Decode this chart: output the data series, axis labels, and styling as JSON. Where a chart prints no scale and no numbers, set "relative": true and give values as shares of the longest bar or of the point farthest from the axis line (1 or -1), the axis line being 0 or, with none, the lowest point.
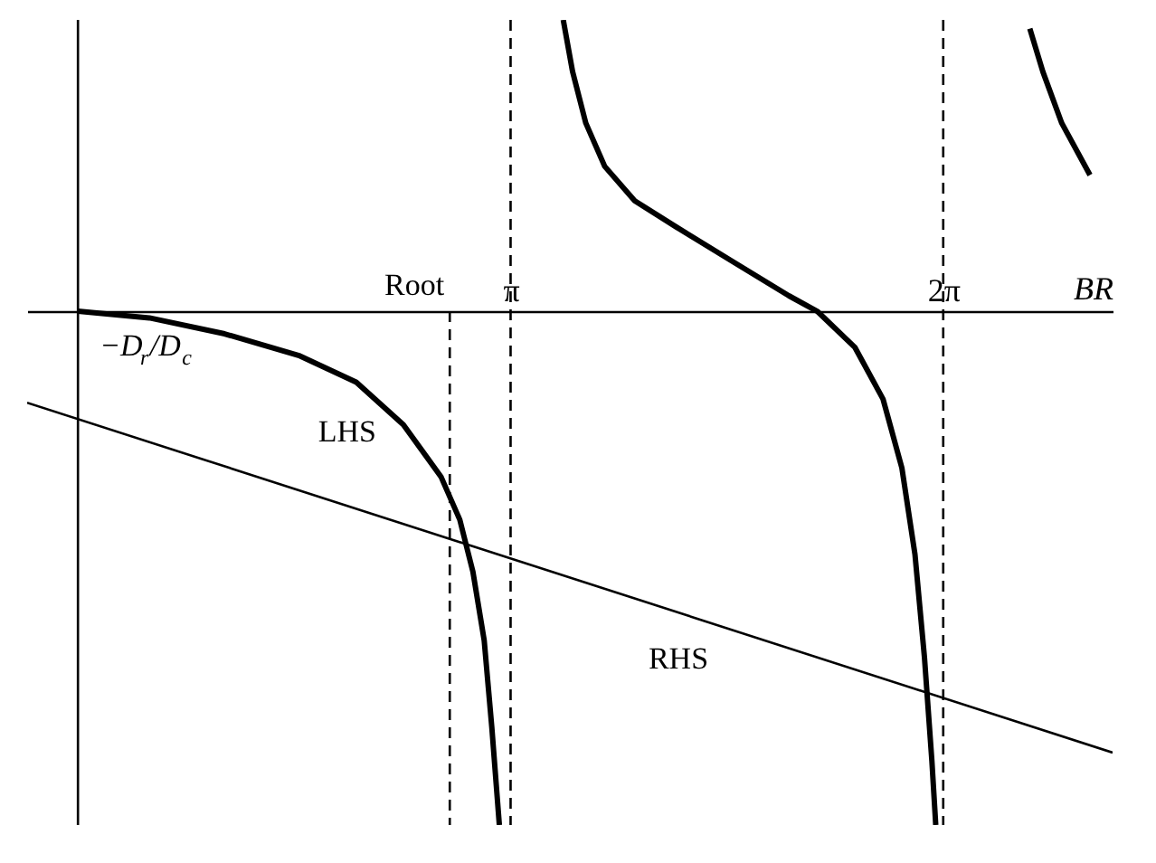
{
  "chart_data": {
    "type": "line",
    "relative": true,
    "xlabel": "BR",
    "xlim": [
      -0.369,
      7.513
    ],
    "xticks": [
      {
        "value": 3.1416,
        "label": "π"
      },
      {
        "value": 6.2832,
        "label": "2π"
      }
    ],
    "series": [
      {
        "name": "LHS",
        "color": "#000000",
        "x": [
          0,
          0.519,
          1.065,
          1.612,
          2.021,
          2.363,
          2.636,
          2.773,
          2.868,
          2.95,
          3.005,
          3.06,
          null,
          3.524,
          3.592,
          3.688,
          3.825,
          4.043,
          4.344,
          4.753,
          5.163,
          5.368,
          5.641,
          5.846,
          5.983,
          6.078,
          6.147,
          6.201,
          6.229,
          null,
          6.912,
          7.007,
          7.144,
          7.349
        ],
        "values": [
          0,
          -0.013,
          -0.044,
          -0.087,
          -0.138,
          -0.221,
          -0.322,
          -0.406,
          -0.507,
          -0.641,
          -0.809,
          -1.0,
          null,
          0.567,
          0.466,
          0.366,
          0.282,
          0.215,
          0.164,
          0.097,
          0.03,
          0,
          -0.07,
          -0.171,
          -0.305,
          -0.473,
          -0.674,
          -0.876,
          -1.0,
          null,
          0.55,
          0.466,
          0.366,
          0.265
        ]
      },
      {
        "name": "RHS",
        "color": "#000000",
        "x": [
          -0.369,
          7.513
        ],
        "values": [
          -0.178,
          -0.859
        ]
      }
    ],
    "ref_lines": [
      {
        "axis": "x",
        "value": 0,
        "line_style": "solid"
      },
      {
        "axis": "x",
        "value": 2.7,
        "line_style": "dashed",
        "label": "Root"
      },
      {
        "axis": "x",
        "value": 3.1416,
        "line_style": "dashed"
      },
      {
        "axis": "x",
        "value": 6.2832,
        "line_style": "dashed"
      }
    ],
    "annotations": [
      {
        "text": "−D$_{r}$/D$_{c}$",
        "x": 0,
        "y": -0.21
      }
    ],
    "grid": false
  }
}
